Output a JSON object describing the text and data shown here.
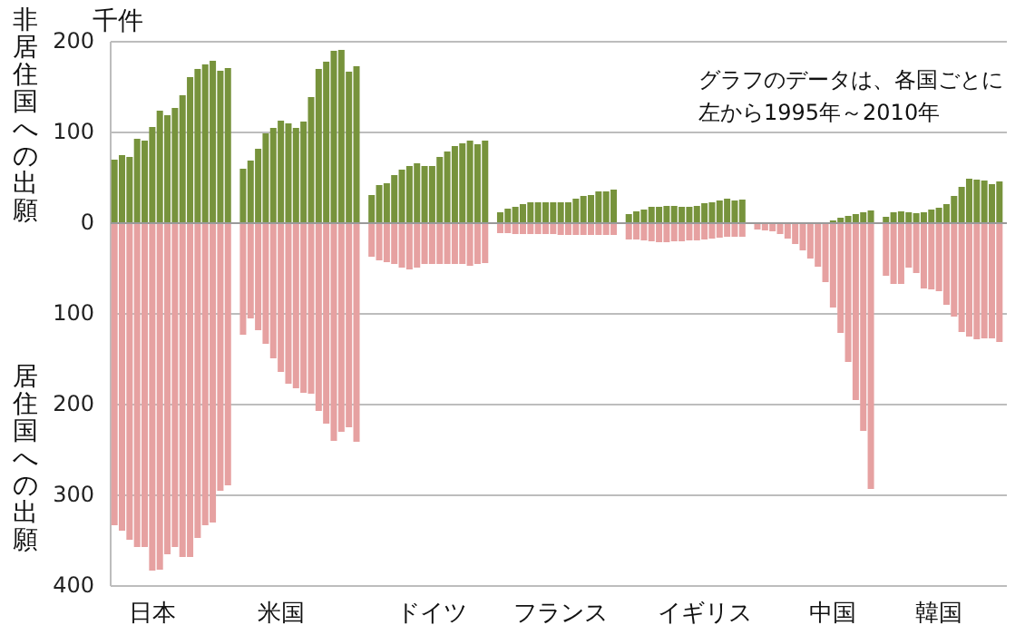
{
  "chart_data": {
    "type": "bar",
    "ylabel": "千件",
    "annotations": [
      "グラフのデータは、各国ごとに",
      "左から1995年～2010年"
    ],
    "stacked": true,
    "categories": [
      null,
      null,
      null,
      null,
      null,
      "日本",
      null,
      null,
      null,
      null,
      null,
      null,
      null,
      null,
      null,
      null,
      null,
      null,
      null,
      null,
      null,
      null,
      "米国",
      null,
      null,
      null,
      null,
      null,
      null,
      null,
      null,
      null,
      null,
      null,
      null,
      null,
      null,
      null,
      null,
      null,
      null,
      null,
      "ドイツ",
      null,
      null,
      null,
      null,
      null,
      null,
      null,
      null,
      null,
      null,
      null,
      null,
      null,
      null,
      null,
      null,
      "フランス",
      null,
      null,
      null,
      null,
      null,
      null,
      null,
      null,
      null,
      null,
      null,
      null,
      null,
      null,
      null,
      null,
      null,
      null,
      "イギリス",
      null,
      null,
      null,
      null,
      null,
      null,
      null,
      null,
      null,
      null,
      null,
      null,
      null,
      null,
      null,
      null,
      "中国",
      null,
      null,
      null,
      null,
      null,
      null,
      null,
      null,
      null,
      null,
      null,
      null,
      null,
      "韓国",
      null,
      null,
      null,
      null,
      null,
      null,
      null,
      null
    ],
    "series": [
      {
        "name": "非居住国への出願",
        "color": "#77933c",
        "values": [
          70,
          75,
          73,
          93,
          91,
          106,
          124,
          119,
          127,
          141,
          161,
          170,
          175,
          179,
          168,
          171,
          null,
          60,
          69,
          82,
          99,
          105,
          113,
          110,
          105,
          112,
          139,
          170,
          178,
          190,
          191,
          167,
          173,
          null,
          31,
          42,
          44,
          53,
          59,
          63,
          66,
          63,
          63,
          73,
          79,
          85,
          88,
          91,
          87,
          91,
          null,
          12,
          16,
          18,
          21,
          23,
          23,
          23,
          23,
          23,
          23,
          27,
          30,
          31,
          35,
          35,
          37,
          null,
          10,
          13,
          15,
          18,
          18,
          19,
          19,
          18,
          18,
          19,
          22,
          23,
          25,
          27,
          25,
          26,
          null,
          0,
          0,
          0,
          0,
          0,
          0,
          0,
          0,
          0,
          1,
          3,
          6,
          8,
          10,
          12,
          14,
          null,
          7,
          12,
          13,
          12,
          11,
          12,
          15,
          17,
          21,
          30,
          40,
          49,
          48,
          47,
          43,
          46
        ]
      },
      {
        "name": "居住国への出願",
        "color": "#e6a1a1",
        "values": [
          -333,
          -339,
          -349,
          -357,
          -357,
          -383,
          -382,
          -365,
          -357,
          -368,
          -368,
          -347,
          -333,
          -330,
          -295,
          -289,
          null,
          -123,
          -105,
          -118,
          -133,
          -149,
          -164,
          -177,
          -182,
          -187,
          -188,
          -207,
          -221,
          -240,
          -230,
          -225,
          -241,
          null,
          -37,
          -41,
          -43,
          -45,
          -49,
          -51,
          -49,
          -45,
          -45,
          -45,
          -45,
          -45,
          -45,
          -47,
          -45,
          -44,
          null,
          -11,
          -11,
          -12,
          -12,
          -12,
          -12,
          -12,
          -12,
          -13,
          -13,
          -13,
          -13,
          -13,
          -13,
          -13,
          -13,
          null,
          -18,
          -18,
          -19,
          -20,
          -21,
          -21,
          -20,
          -20,
          -19,
          -19,
          -18,
          -17,
          -16,
          -15,
          -15,
          -15,
          null,
          -7,
          -8,
          -9,
          -12,
          -17,
          -23,
          -30,
          -39,
          -48,
          -65,
          -93,
          -121,
          -153,
          -195,
          -229,
          -293,
          null,
          -58,
          -67,
          -67,
          -49,
          -55,
          -72,
          -73,
          -75,
          -90,
          -103,
          -120,
          -125,
          -128,
          -127,
          -127,
          -131
        ]
      }
    ],
    "ylim": [
      -400,
      200
    ],
    "yticks": [
      200,
      100,
      0,
      {
        "value": -100,
        "label": "100"
      },
      {
        "value": -200,
        "label": "200"
      },
      {
        "value": -300,
        "label": "300"
      },
      {
        "value": -400,
        "label": "400"
      }
    ],
    "grid": "y"
  }
}
